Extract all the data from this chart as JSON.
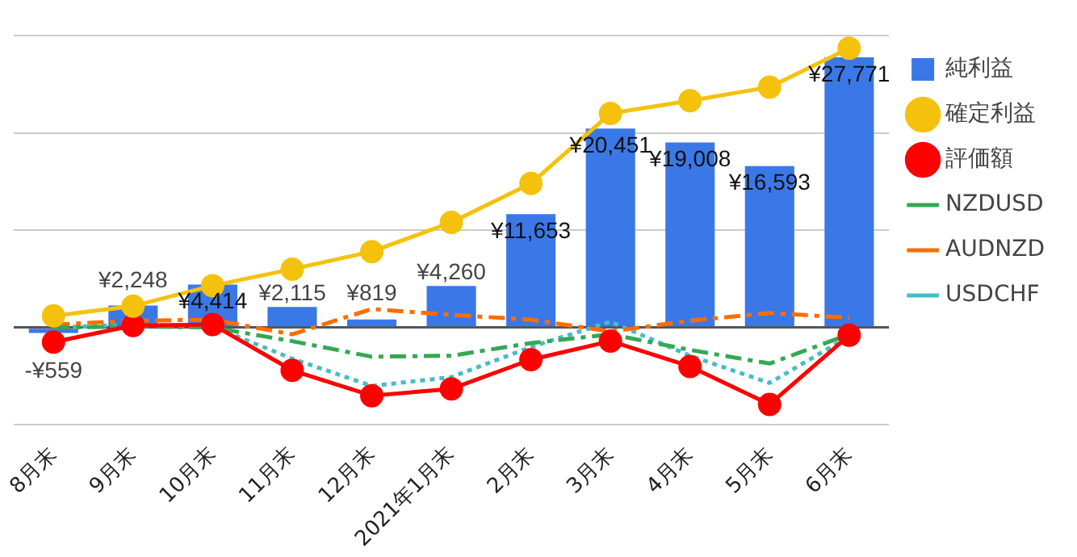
{
  "chart_data": {
    "type": "bar",
    "categories": [
      "8月末",
      "9月末",
      "10月末",
      "11月末",
      "12月末",
      "2021年1月末",
      "2月末",
      "3月末",
      "4月末",
      "5月末",
      "6月末"
    ],
    "series": [
      {
        "name": "純利益",
        "color": "#3b78e7",
        "values": [
          -559,
          2248,
          4414,
          2115,
          819,
          4260,
          11653,
          20451,
          19008,
          16593,
          27771
        ],
        "value_labels": [
          "-¥559",
          "¥2,248",
          "¥4,414",
          "¥2,115",
          "¥819",
          "¥4,260",
          "¥11,653",
          "¥20,451",
          "¥19,008",
          "¥16,593",
          "¥27,771"
        ]
      },
      {
        "name": "確定利益",
        "type": "line",
        "color": "#f4c20d",
        "marker": "circle",
        "line_style": "solid",
        "values": [
          1200,
          2200,
          4300,
          6000,
          7800,
          10800,
          14800,
          22000,
          23300,
          24700,
          28700
        ]
      },
      {
        "name": "評価額",
        "type": "line",
        "color": "#ff0000",
        "marker": "circle",
        "line_style": "solid",
        "values": [
          -1500,
          200,
          300,
          -4400,
          -7000,
          -6300,
          -3300,
          -1400,
          -4000,
          -7900,
          -800
        ]
      },
      {
        "name": "NZDUSD",
        "type": "line",
        "color": "#34a853",
        "marker": "none",
        "line_style": "dashed",
        "values": [
          0,
          100,
          0,
          -1400,
          -3000,
          -2900,
          -1600,
          -700,
          -2300,
          -3700,
          -700
        ]
      },
      {
        "name": "AUDNZD",
        "type": "line",
        "color": "#ff6d01",
        "marker": "none",
        "line_style": "dashed",
        "values": [
          300,
          700,
          800,
          -700,
          1900,
          1300,
          800,
          -400,
          700,
          1500,
          1000
        ]
      },
      {
        "name": "USDCHF",
        "type": "line",
        "color": "#46bdc6",
        "marker": "none",
        "line_style": "dotted",
        "values": [
          0,
          300,
          100,
          -3200,
          -6000,
          -5100,
          -2000,
          600,
          -2900,
          -5700,
          -900
        ]
      }
    ],
    "ylim": [
      -10000,
      30000
    ],
    "yticks": [
      {
        "value": -10000,
        "label": null
      },
      {
        "value": 0,
        "label": null
      },
      {
        "value": 10000,
        "label": null
      },
      {
        "value": 20000,
        "label": null
      },
      {
        "value": 30000,
        "label": null
      }
    ],
    "tick_labels": "x",
    "grid": "y",
    "legend": "right"
  }
}
